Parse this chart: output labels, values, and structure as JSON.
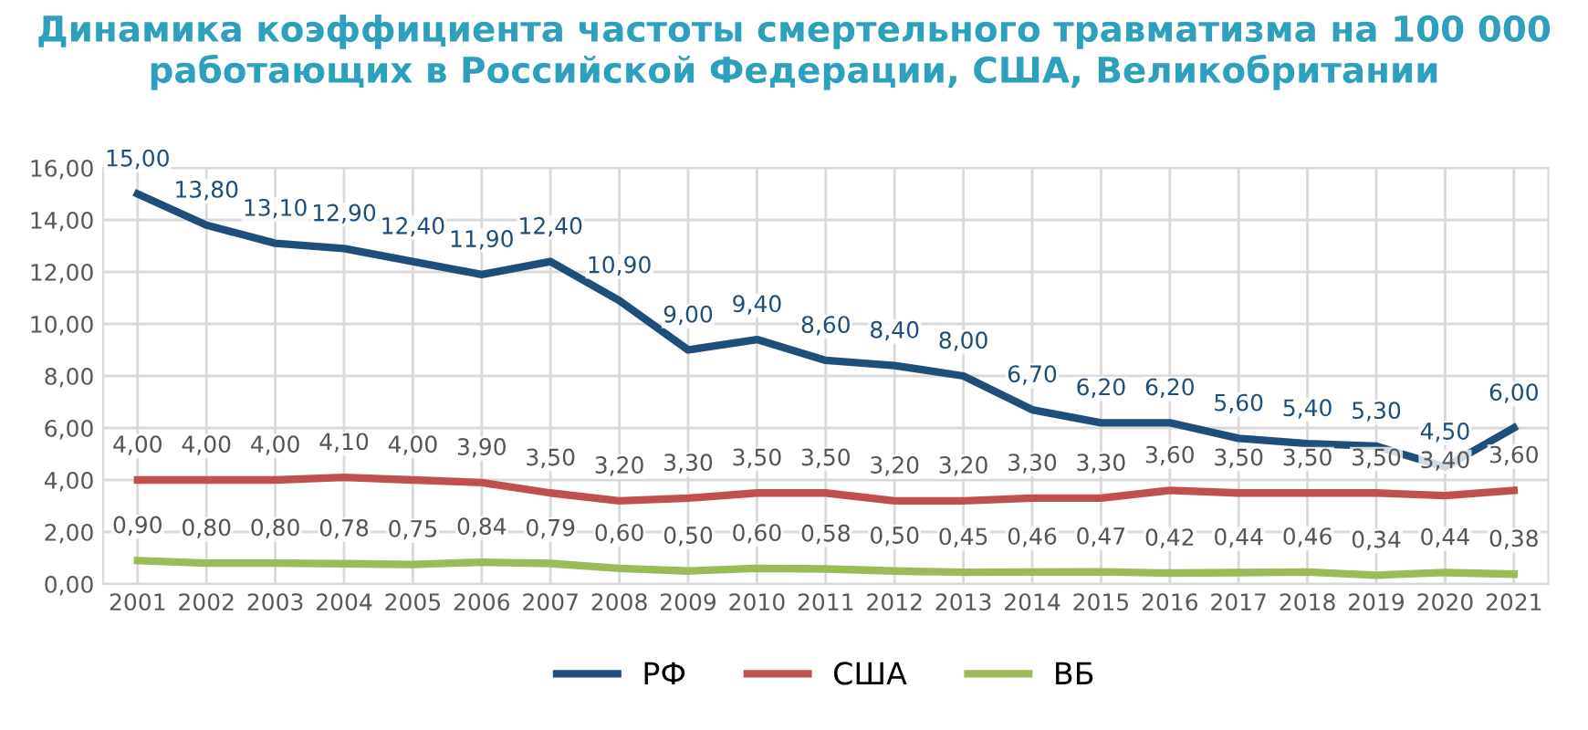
{
  "chart_data": {
    "type": "line",
    "title": "Динамика коэффициента частоты смертельного травматизма на 100 000 работающих в Российской Федерации, США, Великобритании",
    "categories": [
      "2001",
      "2002",
      "2003",
      "2004",
      "2005",
      "2006",
      "2007",
      "2008",
      "2009",
      "2010",
      "2011",
      "2012",
      "2013",
      "2014",
      "2015",
      "2016",
      "2017",
      "2018",
      "2019",
      "2020",
      "2021"
    ],
    "series": [
      {
        "name": "РФ",
        "color": "#1f4e79",
        "values": [
          15.0,
          13.8,
          13.1,
          12.9,
          12.4,
          11.9,
          12.4,
          10.9,
          9.0,
          9.4,
          8.6,
          8.4,
          8.0,
          6.7,
          6.2,
          6.2,
          5.6,
          5.4,
          5.3,
          4.5,
          6.0
        ],
        "value_labels": [
          "15,00",
          "13,80",
          "13,10",
          "12,90",
          "12,40",
          "11,90",
          "12,40",
          "10,90",
          "9,00",
          "9,40",
          "8,60",
          "8,40",
          "8,00",
          "6,70",
          "6,20",
          "6,20",
          "5,60",
          "5,40",
          "5,30",
          "4,50",
          "6,00"
        ]
      },
      {
        "name": "США",
        "color": "#c0504d",
        "values": [
          4.0,
          4.0,
          4.0,
          4.1,
          4.0,
          3.9,
          3.5,
          3.2,
          3.3,
          3.5,
          3.5,
          3.2,
          3.2,
          3.3,
          3.3,
          3.6,
          3.5,
          3.5,
          3.5,
          3.4,
          3.6
        ],
        "value_labels": [
          "4,00",
          "4,00",
          "4,00",
          "4,10",
          "4,00",
          "3,90",
          "3,50",
          "3,20",
          "3,30",
          "3,50",
          "3,50",
          "3,20",
          "3,20",
          "3,30",
          "3,30",
          "3,60",
          "3,50",
          "3,50",
          "3,50",
          "3,40",
          "3,60"
        ]
      },
      {
        "name": "ВБ",
        "color": "#9bbb59",
        "values": [
          0.9,
          0.8,
          0.8,
          0.78,
          0.75,
          0.84,
          0.79,
          0.6,
          0.5,
          0.6,
          0.58,
          0.5,
          0.45,
          0.46,
          0.47,
          0.42,
          0.44,
          0.46,
          0.34,
          0.44,
          0.38
        ],
        "value_labels": [
          "0,90",
          "0,80",
          "0,80",
          "0,78",
          "0,75",
          "0,84",
          "0,79",
          "0,60",
          "0,50",
          "0,60",
          "0,58",
          "0,50",
          "0,45",
          "0,46",
          "0,47",
          "0,42",
          "0,44",
          "0,46",
          "0,34",
          "0,44",
          "0,38"
        ]
      }
    ],
    "ylim": [
      0,
      16
    ],
    "yticks": [
      {
        "value": 0,
        "label": "0,00"
      },
      {
        "value": 2,
        "label": "2,00"
      },
      {
        "value": 4,
        "label": "4,00"
      },
      {
        "value": 6,
        "label": "6,00"
      },
      {
        "value": 8,
        "label": "8,00"
      },
      {
        "value": 10,
        "label": "10,00"
      },
      {
        "value": 12,
        "label": "12,00"
      },
      {
        "value": 14,
        "label": "14,00"
      },
      {
        "value": 16,
        "label": "16,00"
      }
    ],
    "grid": true,
    "legend": "bottom",
    "marker": "none",
    "line_style": "solid"
  }
}
